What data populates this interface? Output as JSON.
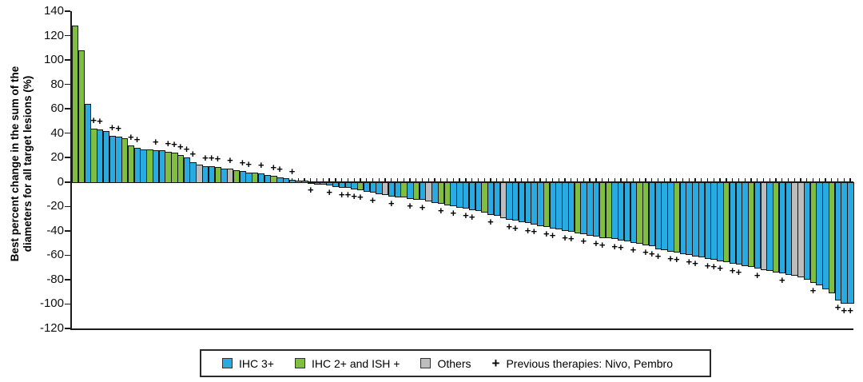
{
  "figure": {
    "y_axis_title_line1": "Best percent change in the sum of the",
    "y_axis_title_line2": "diameters for all target lesions (%)"
  },
  "legend": {
    "items": [
      {
        "label": "IHC 3+",
        "color": "#29ABE2",
        "type": "swatch"
      },
      {
        "label": "IHC 2+ and ISH +",
        "color": "#7FBE3F",
        "type": "swatch"
      },
      {
        "label": "Others",
        "color": "#BDBDBD",
        "type": "swatch"
      },
      {
        "label": "Previous therapies: Nivo, Pembro",
        "symbol": "+",
        "type": "marker"
      }
    ]
  },
  "chart_data": {
    "type": "bar",
    "title": "",
    "xlabel": "",
    "ylabel": "Best percent change in the sum of the diameters for all target lesions (%)",
    "ylim": [
      -120,
      140
    ],
    "yticks": [
      140,
      120,
      100,
      80,
      60,
      40,
      20,
      0,
      -20,
      -40,
      -60,
      -80,
      -100,
      -120
    ],
    "grid": false,
    "legend_position": "bottom",
    "marker_symbol": "+",
    "marker_meaning": "Previous therapies: Nivo, Pembro",
    "series_colors": {
      "b": "#29ABE2",
      "g": "#7FBE3F",
      "o": "#BDBDBD"
    },
    "color_meaning": {
      "b": "IHC 3+",
      "g": "IHC 2+ and ISH +",
      "o": "Others"
    },
    "bars_format": "[best_percent_change, color_key, has_previous_therapy_marker]",
    "bars": [
      [
        128,
        "g",
        0
      ],
      [
        108,
        "g",
        0
      ],
      [
        64,
        "b",
        0
      ],
      [
        44,
        "g",
        1
      ],
      [
        43,
        "b",
        1
      ],
      [
        42,
        "b",
        0
      ],
      [
        38,
        "b",
        1
      ],
      [
        37,
        "b",
        1
      ],
      [
        36,
        "g",
        0
      ],
      [
        30,
        "g",
        1
      ],
      [
        28,
        "b",
        1
      ],
      [
        27,
        "b",
        0
      ],
      [
        27,
        "g",
        0
      ],
      [
        26,
        "b",
        1
      ],
      [
        26,
        "b",
        0
      ],
      [
        25,
        "g",
        1
      ],
      [
        24,
        "g",
        1
      ],
      [
        22,
        "g",
        1
      ],
      [
        20,
        "b",
        1
      ],
      [
        16,
        "b",
        1
      ],
      [
        14,
        "o",
        0
      ],
      [
        13,
        "b",
        1
      ],
      [
        13,
        "b",
        1
      ],
      [
        12,
        "g",
        1
      ],
      [
        11,
        "b",
        0
      ],
      [
        11,
        "o",
        1
      ],
      [
        10,
        "g",
        0
      ],
      [
        9,
        "b",
        1
      ],
      [
        8,
        "b",
        1
      ],
      [
        8,
        "g",
        0
      ],
      [
        7,
        "b",
        1
      ],
      [
        6,
        "b",
        0
      ],
      [
        5,
        "g",
        1
      ],
      [
        4,
        "b",
        1
      ],
      [
        3,
        "b",
        0
      ],
      [
        2,
        "b",
        1
      ],
      [
        1,
        "b",
        0
      ],
      [
        1,
        "b",
        0
      ],
      [
        -1,
        "b",
        1
      ],
      [
        -2,
        "b",
        0
      ],
      [
        -2,
        "g",
        0
      ],
      [
        -3,
        "b",
        1
      ],
      [
        -4,
        "b",
        0
      ],
      [
        -5,
        "b",
        1
      ],
      [
        -5,
        "b",
        1
      ],
      [
        -6,
        "b",
        1
      ],
      [
        -7,
        "g",
        1
      ],
      [
        -8,
        "b",
        0
      ],
      [
        -9,
        "b",
        1
      ],
      [
        -10,
        "b",
        0
      ],
      [
        -11,
        "o",
        0
      ],
      [
        -12,
        "b",
        1
      ],
      [
        -13,
        "b",
        0
      ],
      [
        -13,
        "g",
        0
      ],
      [
        -14,
        "b",
        1
      ],
      [
        -15,
        "g",
        0
      ],
      [
        -15,
        "b",
        1
      ],
      [
        -16,
        "o",
        0
      ],
      [
        -17,
        "b",
        0
      ],
      [
        -18,
        "g",
        1
      ],
      [
        -19,
        "g",
        0
      ],
      [
        -20,
        "b",
        1
      ],
      [
        -21,
        "b",
        0
      ],
      [
        -22,
        "b",
        1
      ],
      [
        -23,
        "b",
        1
      ],
      [
        -24,
        "b",
        0
      ],
      [
        -25,
        "g",
        0
      ],
      [
        -27,
        "b",
        1
      ],
      [
        -28,
        "b",
        0
      ],
      [
        -30,
        "o",
        0
      ],
      [
        -31,
        "b",
        1
      ],
      [
        -32,
        "b",
        1
      ],
      [
        -33,
        "b",
        0
      ],
      [
        -34,
        "b",
        1
      ],
      [
        -35,
        "b",
        1
      ],
      [
        -36,
        "b",
        0
      ],
      [
        -37,
        "g",
        1
      ],
      [
        -38,
        "b",
        1
      ],
      [
        -39,
        "b",
        0
      ],
      [
        -40,
        "b",
        1
      ],
      [
        -41,
        "b",
        1
      ],
      [
        -42,
        "g",
        0
      ],
      [
        -43,
        "b",
        1
      ],
      [
        -44,
        "b",
        0
      ],
      [
        -45,
        "b",
        1
      ],
      [
        -46,
        "g",
        1
      ],
      [
        -46,
        "g",
        0
      ],
      [
        -47,
        "b",
        1
      ],
      [
        -48,
        "b",
        1
      ],
      [
        -49,
        "b",
        0
      ],
      [
        -50,
        "b",
        1
      ],
      [
        -51,
        "g",
        0
      ],
      [
        -52,
        "g",
        1
      ],
      [
        -53,
        "b",
        1
      ],
      [
        -55,
        "b",
        1
      ],
      [
        -56,
        "b",
        0
      ],
      [
        -57,
        "b",
        1
      ],
      [
        -58,
        "g",
        1
      ],
      [
        -59,
        "b",
        0
      ],
      [
        -60,
        "b",
        1
      ],
      [
        -61,
        "b",
        1
      ],
      [
        -62,
        "b",
        0
      ],
      [
        -63,
        "b",
        1
      ],
      [
        -64,
        "b",
        1
      ],
      [
        -65,
        "b",
        1
      ],
      [
        -66,
        "g",
        0
      ],
      [
        -67,
        "b",
        1
      ],
      [
        -68,
        "b",
        1
      ],
      [
        -69,
        "b",
        0
      ],
      [
        -70,
        "g",
        0
      ],
      [
        -71,
        "b",
        1
      ],
      [
        -72,
        "o",
        0
      ],
      [
        -73,
        "b",
        0
      ],
      [
        -74,
        "g",
        0
      ],
      [
        -75,
        "b",
        1
      ],
      [
        -76,
        "b",
        0
      ],
      [
        -77,
        "o",
        0
      ],
      [
        -78,
        "o",
        0
      ],
      [
        -80,
        "b",
        0
      ],
      [
        -83,
        "g",
        1
      ],
      [
        -85,
        "b",
        0
      ],
      [
        -88,
        "b",
        0
      ],
      [
        -91,
        "g",
        0
      ],
      [
        -97,
        "b",
        1
      ],
      [
        -100,
        "b",
        1
      ],
      [
        -100,
        "b",
        1
      ]
    ]
  }
}
